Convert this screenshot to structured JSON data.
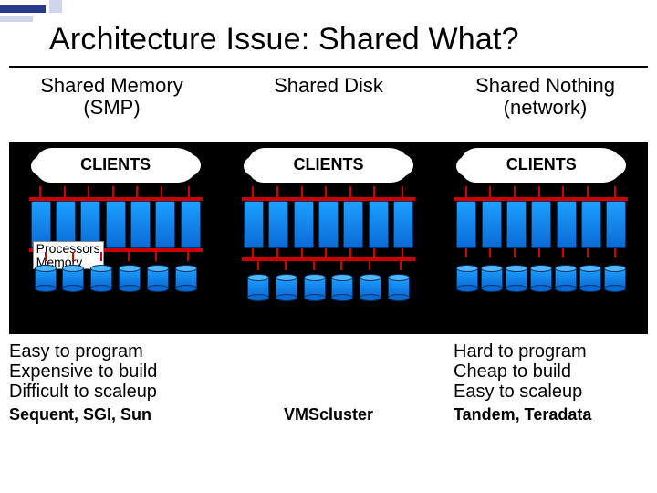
{
  "title": "Architecture Issue: Shared What?",
  "columns": [
    {
      "head1": "Shared Memory",
      "head2": "(SMP)"
    },
    {
      "head1": "Shared Disk",
      "head2": ""
    },
    {
      "head1": "Shared Nothing",
      "head2": "(network)"
    }
  ],
  "cloud_label": "CLIENTS",
  "smp_label": {
    "l1": "Processors",
    "l2": "Memory"
  },
  "notes": {
    "left": {
      "l1": "Easy to program",
      "l2": "Expensive to build",
      "l3": "Difficult to scaleup"
    },
    "right": {
      "l1": "Hard to program",
      "l2": "Cheap to build",
      "l3": "Easy to scaleup"
    }
  },
  "examples": {
    "left": "Sequent, SGI, Sun",
    "middle": "VMScluster",
    "right": "Tandem, Teradata"
  },
  "diagram": {
    "type": "infographic",
    "background_color": "#000000",
    "bar_color": "#cc0000",
    "processor_color": "#1da0ff",
    "processor_border": "#003366",
    "disk_color": "#1da0ff",
    "cloud_color": "#ffffff",
    "n_clients_ticks": 7,
    "n_processors": 7,
    "n_disk_ticks": 6,
    "n_disks": 6,
    "tick_positions_pct": [
      6,
      20,
      34,
      48,
      62,
      76,
      92
    ],
    "disk_tick_positions_pct": [
      9,
      25,
      41,
      57,
      73,
      91
    ],
    "share_nothing_segments": 7,
    "title_fontsize": 34,
    "head_fontsize": 22,
    "notes_fontsize": 20,
    "examples_fontsize": 18
  }
}
